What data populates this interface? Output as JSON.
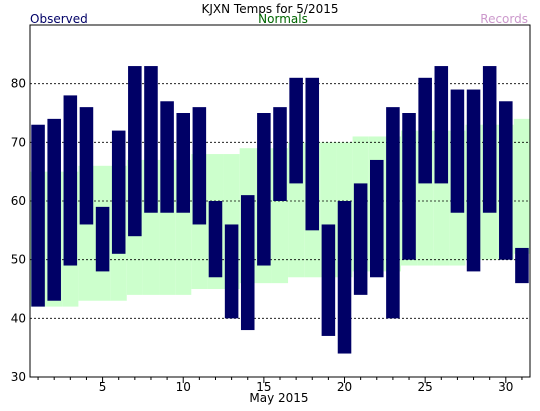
{
  "chart_data": {
    "type": "bar",
    "title": "KJXN Temps for 5/2015",
    "legend": {
      "observed": "Observed",
      "normals": "Normals",
      "records": "Records",
      "placement": "top"
    },
    "xlabel": "May 2015",
    "ylabel": "",
    "xlim": [
      0.5,
      31.5
    ],
    "ylim": [
      30,
      90
    ],
    "x_ticks": [
      5,
      10,
      15,
      20,
      25,
      30
    ],
    "y_ticks": [
      30,
      40,
      50,
      60,
      70,
      80
    ],
    "gridlines_dashed": [
      40,
      50,
      60,
      70,
      80
    ],
    "colors": {
      "observed": "#000066",
      "normals": "#ccffcc",
      "records": "#cc99cc",
      "observed_label": "#000066",
      "normals_label": "#006600",
      "records_label": "#cc99cc"
    },
    "series": [
      {
        "name": "Observed",
        "days": [
          1,
          2,
          3,
          4,
          5,
          6,
          7,
          8,
          9,
          10,
          11,
          12,
          13,
          14,
          15,
          16,
          17,
          18,
          19,
          20,
          21,
          22,
          23,
          24,
          25,
          26,
          27,
          28,
          29,
          30,
          31
        ],
        "high": [
          73,
          74,
          78,
          76,
          59,
          72,
          83,
          83,
          77,
          75,
          76,
          60,
          56,
          61,
          75,
          76,
          81,
          81,
          56,
          60,
          63,
          67,
          76,
          75,
          81,
          83,
          79,
          79,
          83,
          77,
          52
        ],
        "low": [
          42,
          43,
          49,
          56,
          48,
          51,
          54,
          58,
          58,
          58,
          56,
          47,
          40,
          38,
          49,
          60,
          63,
          55,
          37,
          34,
          44,
          47,
          40,
          50,
          63,
          63,
          58,
          48,
          58,
          50,
          46
        ]
      },
      {
        "name": "Normals",
        "days": [
          1,
          2,
          3,
          4,
          5,
          6,
          7,
          8,
          9,
          10,
          11,
          12,
          13,
          14,
          15,
          16,
          17,
          18,
          19,
          20,
          21,
          22,
          23,
          24,
          25,
          26,
          27,
          28,
          29,
          30,
          31
        ],
        "high": [
          65,
          65,
          65,
          66,
          66,
          66,
          67,
          67,
          67,
          67,
          68,
          68,
          68,
          69,
          69,
          69,
          70,
          70,
          70,
          70,
          71,
          71,
          71,
          72,
          72,
          72,
          72,
          73,
          73,
          73,
          74
        ],
        "low": [
          42,
          42,
          42,
          43,
          43,
          43,
          44,
          44,
          44,
          44,
          45,
          45,
          45,
          46,
          46,
          46,
          47,
          47,
          47,
          47,
          48,
          48,
          48,
          49,
          49,
          49,
          49,
          50,
          50,
          50,
          51
        ]
      }
    ]
  }
}
